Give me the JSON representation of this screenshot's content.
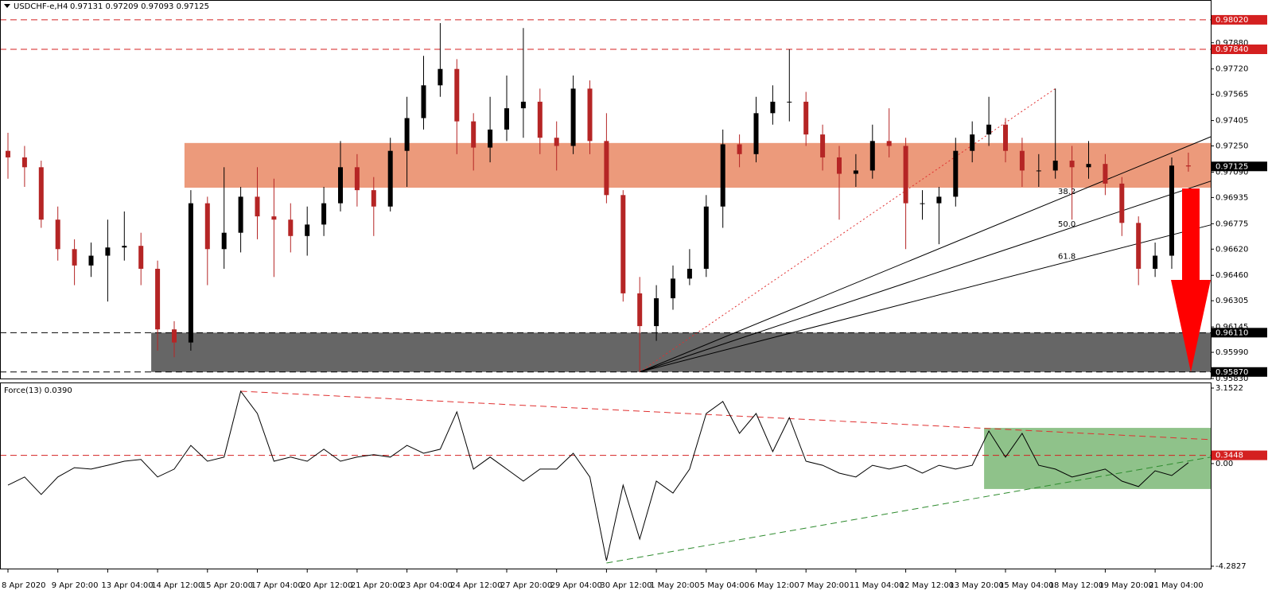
{
  "chart_data": [
    {
      "type": "candlestick",
      "symbol": "USDCHF-e,H4",
      "ohlc_label": "0.97131 0.97209 0.97093 0.97125",
      "categories": [
        "8 Apr 2020",
        null,
        null,
        "9 Apr 20:00",
        null,
        null,
        "13 Apr 04:00",
        null,
        null,
        "14 Apr 12:00",
        null,
        null,
        "15 Apr 20:00",
        null,
        null,
        "17 Apr 04:00",
        null,
        null,
        "20 Apr 12:00",
        null,
        null,
        "21 Apr 20:00",
        null,
        null,
        "23 Apr 04:00",
        null,
        null,
        "24 Apr 12:00",
        null,
        null,
        "27 Apr 20:00",
        null,
        null,
        "29 Apr 04:00",
        null,
        null,
        "30 Apr 12:00",
        null,
        null,
        "1 May 20:00",
        null,
        null,
        "5 May 04:00",
        null,
        null,
        "6 May 12:00",
        null,
        null,
        "7 May 20:00",
        null,
        null,
        "11 May 04:00",
        null,
        null,
        "12 May 12:00",
        null,
        null,
        "13 May 20:00",
        null,
        null,
        "15 May 04:00",
        null,
        null,
        "18 May 12:00",
        null,
        null,
        "19 May 20:00",
        null,
        null,
        "21 May 04:00",
        null,
        null
      ],
      "open": [
        0.9722,
        0.9718,
        0.9712,
        0.968,
        0.9662,
        0.9652,
        0.9658,
        0.9663,
        0.9664,
        0.965,
        0.9613,
        0.9605,
        0.969,
        0.9662,
        0.9672,
        0.9694,
        0.9682,
        0.968,
        0.967,
        0.9677,
        0.969,
        0.9712,
        0.9698,
        0.9688,
        0.9722,
        0.9742,
        0.9762,
        0.9772,
        0.974,
        0.9724,
        0.9735,
        0.9748,
        0.9752,
        0.973,
        0.9725,
        0.976,
        0.9728,
        0.9695,
        0.9635,
        0.9615,
        0.9632,
        0.9644,
        0.965,
        0.9688,
        0.9726,
        0.972,
        0.9745,
        0.9752,
        0.9752,
        0.9732,
        0.9718,
        0.9708,
        0.971,
        0.9728,
        0.9725,
        0.969,
        0.969,
        0.9694,
        0.9722,
        0.9732,
        0.9738,
        0.9722,
        0.971,
        0.971,
        0.9716,
        0.9712,
        0.9714,
        0.9702,
        0.9678,
        0.965,
        0.9658,
        0.97131
      ],
      "high": [
        0.9733,
        0.9725,
        0.9716,
        0.9688,
        0.9668,
        0.9666,
        0.968,
        0.9685,
        0.9672,
        0.9655,
        0.9618,
        0.9698,
        0.9694,
        0.9712,
        0.97,
        0.9712,
        0.9705,
        0.969,
        0.9688,
        0.97,
        0.9728,
        0.972,
        0.9706,
        0.973,
        0.9755,
        0.978,
        0.98,
        0.9778,
        0.9745,
        0.9755,
        0.9768,
        0.9797,
        0.976,
        0.974,
        0.9768,
        0.9765,
        0.9745,
        0.9698,
        0.9645,
        0.964,
        0.9652,
        0.9662,
        0.9695,
        0.9735,
        0.9732,
        0.9755,
        0.9762,
        0.9784,
        0.9758,
        0.9738,
        0.9725,
        0.972,
        0.9738,
        0.9748,
        0.973,
        0.9698,
        0.97,
        0.973,
        0.974,
        0.9755,
        0.9742,
        0.973,
        0.972,
        0.976,
        0.9725,
        0.9728,
        0.972,
        0.9706,
        0.9682,
        0.9666,
        0.9718,
        0.97209
      ],
      "low": [
        0.9705,
        0.97,
        0.9675,
        0.9655,
        0.964,
        0.9645,
        0.963,
        0.9655,
        0.964,
        0.96,
        0.9596,
        0.96,
        0.964,
        0.965,
        0.966,
        0.9668,
        0.9645,
        0.966,
        0.9658,
        0.967,
        0.9685,
        0.9688,
        0.967,
        0.9685,
        0.97,
        0.9735,
        0.9755,
        0.972,
        0.971,
        0.9715,
        0.9728,
        0.973,
        0.972,
        0.971,
        0.972,
        0.972,
        0.969,
        0.963,
        0.9587,
        0.9606,
        0.9625,
        0.964,
        0.9645,
        0.9675,
        0.9712,
        0.9715,
        0.9738,
        0.974,
        0.9725,
        0.971,
        0.968,
        0.97,
        0.9705,
        0.9718,
        0.9662,
        0.968,
        0.9665,
        0.9688,
        0.9715,
        0.9725,
        0.9715,
        0.97,
        0.97,
        0.9705,
        0.968,
        0.9705,
        0.9695,
        0.967,
        0.964,
        0.9645,
        0.965,
        0.97093
      ],
      "close": [
        0.9718,
        0.9712,
        0.968,
        0.9662,
        0.9652,
        0.9658,
        0.9663,
        0.9664,
        0.965,
        0.9613,
        0.9605,
        0.969,
        0.9662,
        0.9672,
        0.9694,
        0.9682,
        0.968,
        0.967,
        0.9677,
        0.969,
        0.9712,
        0.9698,
        0.9688,
        0.9722,
        0.9742,
        0.9762,
        0.9772,
        0.974,
        0.9724,
        0.9735,
        0.9748,
        0.9752,
        0.973,
        0.9725,
        0.976,
        0.9728,
        0.9695,
        0.9635,
        0.9615,
        0.9632,
        0.9644,
        0.965,
        0.9688,
        0.9726,
        0.972,
        0.9745,
        0.9752,
        0.9752,
        0.9732,
        0.9718,
        0.9708,
        0.971,
        0.9728,
        0.9725,
        0.969,
        0.969,
        0.9694,
        0.9722,
        0.9732,
        0.9738,
        0.9722,
        0.971,
        0.971,
        0.9716,
        0.9712,
        0.9714,
        0.9702,
        0.9678,
        0.965,
        0.9658,
        0.9713,
        0.97125
      ],
      "up_color": "#000000",
      "down_color": "#b52525",
      "ylim": [
        0.9583,
        0.98141
      ],
      "yticks": [
        {
          "value": 0.9788,
          "label": "0.97880"
        },
        {
          "value": 0.9772,
          "label": "0.97720"
        },
        0.97565,
        0.97405,
        {
          "value": 0.9725,
          "label": "0.97250"
        },
        {
          "value": 0.9709,
          "label": "0.97090"
        },
        0.96935,
        0.96775,
        {
          "value": 0.9662,
          "label": "0.96620"
        },
        {
          "value": 0.9646,
          "label": "0.96460"
        },
        0.96305,
        0.96145,
        {
          "value": 0.9599,
          "label": "0.95990"
        },
        {
          "value": 0.9583,
          "label": "0.95830"
        }
      ],
      "levels": [
        {
          "value": 0.9802,
          "label": "0.98020",
          "color": "#d42020"
        },
        {
          "value": 0.9784,
          "label": "0.97840",
          "color": "#d42020"
        },
        {
          "value": 0.9611,
          "label": "0.96110",
          "color": "#000000"
        },
        {
          "value": 0.9587,
          "label": "0.95870",
          "color": "#000000"
        }
      ],
      "current_price": {
        "value": 0.97125,
        "label": "0.97125"
      },
      "zones": [
        {
          "range": [
            0.96995,
            0.97268
          ],
          "start": 11,
          "color": "#ec9a7b"
        },
        {
          "range": [
            0.9587,
            0.9611
          ],
          "start": 9,
          "color": "#666666"
        }
      ],
      "fan": {
        "origin": [
          38,
          0.9587
        ],
        "anchor": [
          63,
          0.976
        ],
        "lines": [
          {
            "label": "38.2",
            "end": 0.97306
          },
          {
            "label": "50.0",
            "end": 0.97035
          },
          {
            "label": "61.8",
            "end": 0.96768
          }
        ]
      }
    },
    {
      "type": "line",
      "title": "Force(13) 0.0390",
      "values": [
        -0.9,
        -0.56,
        -1.29,
        -0.56,
        -0.17,
        -0.23,
        -0.07,
        0.1,
        0.17,
        -0.56,
        -0.23,
        0.76,
        0.1,
        0.27,
        3.02,
        2.09,
        0.1,
        0.27,
        0.1,
        0.6,
        0.1,
        0.27,
        0.37,
        0.27,
        0.76,
        0.43,
        0.6,
        2.16,
        -0.23,
        0.27,
        -0.23,
        -0.73,
        -0.23,
        -0.23,
        0.43,
        -0.56,
        -4.05,
        -0.9,
        -3.15,
        -0.73,
        -1.23,
        -0.23,
        2.09,
        2.59,
        1.26,
        2.09,
        0.5,
        1.92,
        0.1,
        -0.07,
        -0.4,
        -0.56,
        -0.07,
        -0.23,
        -0.07,
        -0.4,
        -0.07,
        -0.23,
        -0.07,
        1.36,
        0.27,
        1.26,
        -0.07,
        -0.23,
        -0.56,
        -0.4,
        -0.23,
        -0.73,
        -0.96,
        -0.3,
        -0.5,
        0.039
      ],
      "color": "#000000",
      "ylim": [
        -4.415,
        3.351
      ],
      "yticks": [
        3.1522,
        {
          "value": 0,
          "label": "0.00"
        },
        -4.2827
      ],
      "levels": [
        {
          "value": 0.3448,
          "label": "0.3448",
          "color": "#d42020"
        }
      ],
      "trendlines": [
        {
          "start": [
            14,
            3.02
          ],
          "end": 1.0,
          "color": "#e03030"
        },
        {
          "start": [
            36,
            -4.15
          ],
          "end": 0.27,
          "color": "#2e8b2e"
        }
      ],
      "box": {
        "start": 59,
        "range": [
          -1.06,
          1.49
        ],
        "color": "#8fc28a"
      }
    }
  ]
}
